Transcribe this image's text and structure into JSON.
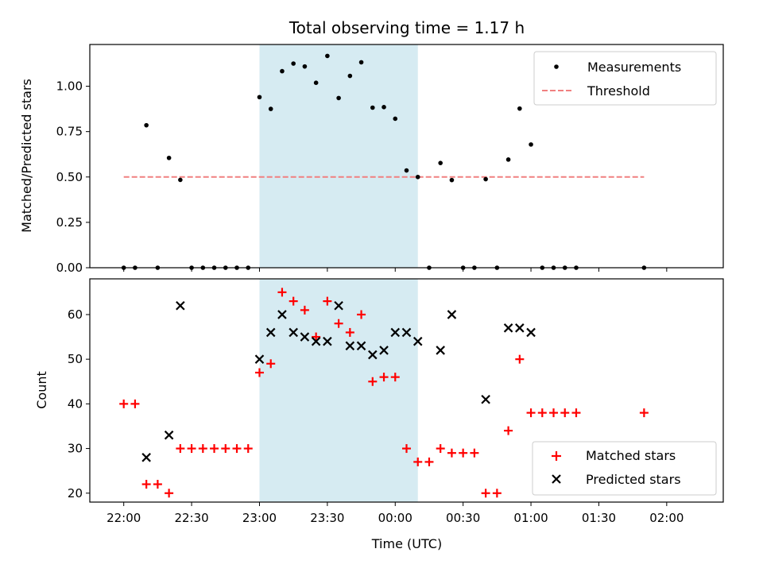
{
  "chart_data": [
    {
      "type": "scatter",
      "title": "Total observing time = 1.17 h",
      "xlabel": "",
      "ylabel": "Matched/Predicted stars",
      "xlim_min": [
        -15,
        265
      ],
      "ylim": [
        0,
        1.23
      ],
      "yticks": [
        0.0,
        0.25,
        0.5,
        0.75,
        1.0
      ],
      "ytick_labels": [
        "0.00",
        "0.25",
        "0.50",
        "0.75",
        "1.00"
      ],
      "grid": false,
      "legend_position": "top-right",
      "shaded_interval_min": [
        60,
        130
      ],
      "shade_color": "#add8e6",
      "series": [
        {
          "name": "Measurements",
          "marker": "dot",
          "color": "#000000",
          "points": [
            [
              0,
              0
            ],
            [
              5,
              0
            ],
            [
              10,
              0.785
            ],
            [
              15,
              0
            ],
            [
              20,
              0.605
            ],
            [
              25,
              0.484
            ],
            [
              30,
              0
            ],
            [
              35,
              0
            ],
            [
              40,
              0
            ],
            [
              45,
              0
            ],
            [
              50,
              0
            ],
            [
              55,
              0
            ],
            [
              60,
              0.94
            ],
            [
              65,
              0.875
            ],
            [
              70,
              1.083
            ],
            [
              75,
              1.125
            ],
            [
              80,
              1.109
            ],
            [
              85,
              1.019
            ],
            [
              90,
              1.167
            ],
            [
              95,
              0.935
            ],
            [
              100,
              1.057
            ],
            [
              105,
              1.132
            ],
            [
              110,
              0.882
            ],
            [
              115,
              0.885
            ],
            [
              120,
              0.821
            ],
            [
              125,
              0.536
            ],
            [
              130,
              0.5
            ],
            [
              135,
              0
            ],
            [
              140,
              0.577
            ],
            [
              145,
              0.483
            ],
            [
              150,
              0
            ],
            [
              155,
              0
            ],
            [
              160,
              0.488
            ],
            [
              165,
              0
            ],
            [
              170,
              0.596
            ],
            [
              175,
              0.877
            ],
            [
              180,
              0.679
            ],
            [
              185,
              0
            ],
            [
              190,
              0
            ],
            [
              195,
              0
            ],
            [
              200,
              0
            ],
            [
              230,
              0
            ]
          ]
        },
        {
          "name": "Threshold",
          "marker": "dashed-line",
          "color": "#f08080",
          "points": [
            [
              0,
              0.5
            ],
            [
              230,
              0.5
            ]
          ]
        }
      ]
    },
    {
      "type": "scatter",
      "title": "",
      "xlabel": "Time (UTC)",
      "ylabel": "Count",
      "xlim_min": [
        -15,
        265
      ],
      "ylim": [
        18,
        68
      ],
      "yticks": [
        20,
        30,
        40,
        50,
        60
      ],
      "ytick_labels": [
        "20",
        "30",
        "40",
        "50",
        "60"
      ],
      "xticks_min": [
        0,
        30,
        60,
        90,
        120,
        150,
        180,
        210,
        240
      ],
      "xtick_labels": [
        "22:00",
        "22:30",
        "23:00",
        "23:30",
        "00:00",
        "00:30",
        "01:00",
        "01:30",
        "02:00"
      ],
      "grid": false,
      "legend_position": "bottom-right",
      "shaded_interval_min": [
        60,
        130
      ],
      "shade_color": "#add8e6",
      "series": [
        {
          "name": "Matched stars",
          "marker": "plus",
          "color": "#ff0000",
          "points": [
            [
              0,
              40
            ],
            [
              5,
              40
            ],
            [
              10,
              22
            ],
            [
              15,
              22
            ],
            [
              20,
              20
            ],
            [
              25,
              30
            ],
            [
              30,
              30
            ],
            [
              35,
              30
            ],
            [
              40,
              30
            ],
            [
              45,
              30
            ],
            [
              50,
              30
            ],
            [
              55,
              30
            ],
            [
              60,
              47
            ],
            [
              65,
              49
            ],
            [
              70,
              65
            ],
            [
              75,
              63
            ],
            [
              80,
              61
            ],
            [
              85,
              55
            ],
            [
              90,
              63
            ],
            [
              95,
              58
            ],
            [
              100,
              56
            ],
            [
              105,
              60
            ],
            [
              110,
              45
            ],
            [
              115,
              46
            ],
            [
              120,
              46
            ],
            [
              125,
              30
            ],
            [
              130,
              27
            ],
            [
              135,
              27
            ],
            [
              140,
              30
            ],
            [
              145,
              29
            ],
            [
              150,
              29
            ],
            [
              155,
              29
            ],
            [
              160,
              20
            ],
            [
              165,
              20
            ],
            [
              170,
              34
            ],
            [
              175,
              50
            ],
            [
              180,
              38
            ],
            [
              185,
              38
            ],
            [
              190,
              38
            ],
            [
              195,
              38
            ],
            [
              200,
              38
            ],
            [
              230,
              38
            ]
          ]
        },
        {
          "name": "Predicted stars",
          "marker": "x",
          "color": "#000000",
          "points": [
            [
              10,
              28
            ],
            [
              20,
              33
            ],
            [
              25,
              62
            ],
            [
              60,
              50
            ],
            [
              65,
              56
            ],
            [
              70,
              60
            ],
            [
              75,
              56
            ],
            [
              80,
              55
            ],
            [
              85,
              54
            ],
            [
              90,
              54
            ],
            [
              95,
              62
            ],
            [
              100,
              53
            ],
            [
              105,
              53
            ],
            [
              110,
              51
            ],
            [
              115,
              52
            ],
            [
              120,
              56
            ],
            [
              125,
              56
            ],
            [
              130,
              54
            ],
            [
              140,
              52
            ],
            [
              145,
              60
            ],
            [
              160,
              41
            ],
            [
              170,
              57
            ],
            [
              175,
              57
            ],
            [
              180,
              56
            ]
          ]
        }
      ]
    }
  ]
}
